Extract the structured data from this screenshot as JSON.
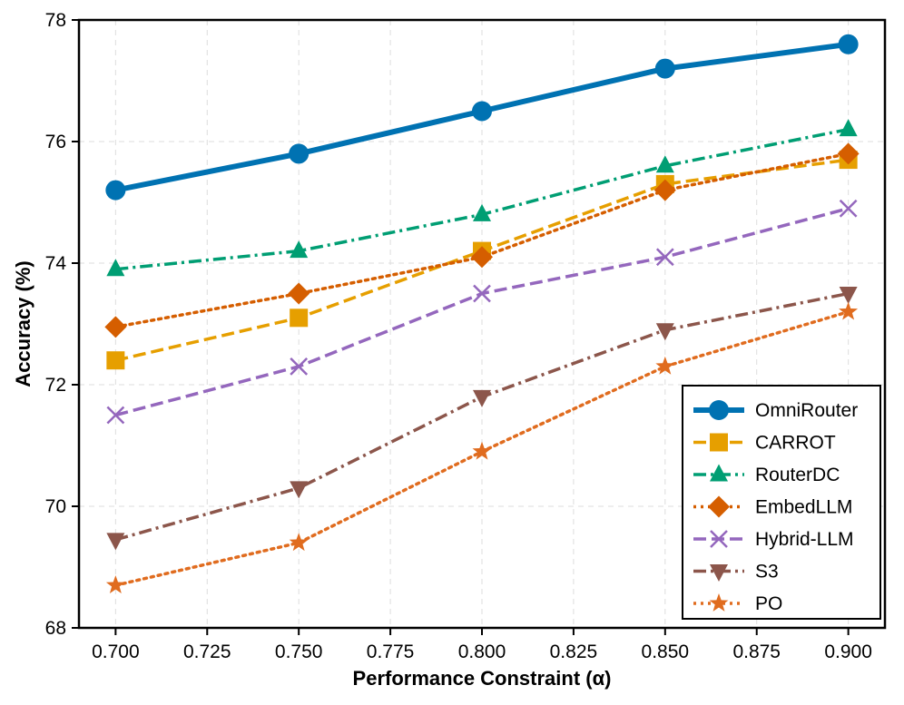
{
  "chart_data": {
    "type": "line",
    "title": "",
    "xlabel": "Performance Constraint (α)",
    "ylabel": "Accuracy (%)",
    "xlim": [
      0.69,
      0.91
    ],
    "ylim": [
      68,
      78
    ],
    "xticks": [
      "0.700",
      "0.725",
      "0.750",
      "0.775",
      "0.800",
      "0.825",
      "0.850",
      "0.875",
      "0.900"
    ],
    "yticks": [
      "68",
      "70",
      "72",
      "74",
      "76",
      "78"
    ],
    "x": [
      0.7,
      0.75,
      0.8,
      0.85,
      0.9
    ],
    "grid": true,
    "legend_position": "lower-right",
    "series": [
      {
        "name": "OmniRouter",
        "color": "#0072B2",
        "marker": "circle",
        "dash": "solid",
        "linewidth": "bold",
        "values": [
          75.2,
          75.8,
          76.5,
          77.2,
          77.6
        ]
      },
      {
        "name": "CARROT",
        "color": "#E69F00",
        "marker": "square",
        "dash": "dashed",
        "values": [
          72.4,
          73.1,
          74.2,
          75.3,
          75.7
        ]
      },
      {
        "name": "RouterDC",
        "color": "#009E73",
        "marker": "triangle-up",
        "dash": "dashdot",
        "values": [
          73.9,
          74.2,
          74.8,
          75.6,
          76.2
        ]
      },
      {
        "name": "EmbedLLM",
        "color": "#D55E00",
        "marker": "diamond",
        "dash": "dotted",
        "values": [
          72.95,
          73.5,
          74.1,
          75.2,
          75.8
        ]
      },
      {
        "name": "Hybrid-LLM",
        "color": "#9467BD",
        "marker": "x",
        "dash": "dashed",
        "values": [
          71.5,
          72.3,
          73.5,
          74.1,
          74.9
        ]
      },
      {
        "name": "S3",
        "color": "#8C564B",
        "marker": "triangle-down",
        "dash": "dashdot",
        "values": [
          69.45,
          70.3,
          71.8,
          72.9,
          73.5
        ]
      },
      {
        "name": "PO",
        "color": "#E06C1F",
        "marker": "star",
        "dash": "dotted",
        "values": [
          68.7,
          69.4,
          70.9,
          72.3,
          73.2
        ]
      }
    ]
  }
}
